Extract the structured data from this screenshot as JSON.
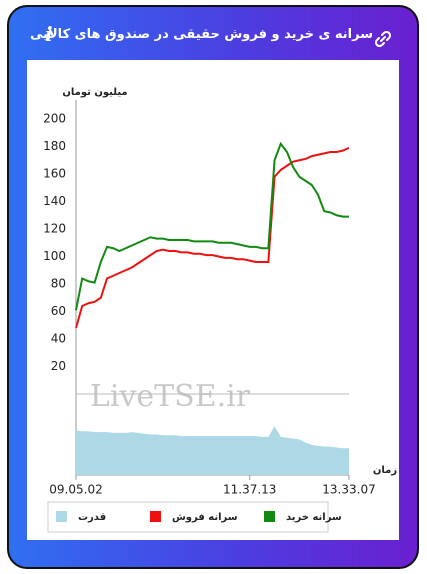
{
  "header": {
    "title": "سرانه ی خرید و فروش حقیقی در صندوق های کالایی",
    "info": "i"
  },
  "chart_data": {
    "type": "line",
    "y_label": "میلیون تومان",
    "x_label": "زمان",
    "watermark": "LiveTSE.ir",
    "categories": [
      "09.05.02",
      null,
      null,
      null,
      null,
      null,
      null,
      null,
      null,
      null,
      null,
      null,
      null,
      null,
      null,
      null,
      null,
      null,
      null,
      null,
      null,
      null,
      null,
      null,
      null,
      null,
      null,
      null,
      "11.37.13",
      null,
      null,
      null,
      null,
      null,
      null,
      null,
      null,
      null,
      null,
      null,
      null,
      null,
      null,
      null,
      "13.33.07"
    ],
    "ylim": [
      0,
      200
    ],
    "yticks": [
      20,
      40,
      60,
      80,
      100,
      120,
      140,
      160,
      180,
      200
    ],
    "y2lim": [
      0,
      100
    ],
    "series": [
      {
        "name": "سرانه خرید",
        "color": "#118a11",
        "values": [
          61,
          84,
          82,
          81,
          96,
          107,
          106,
          104,
          106,
          108,
          110,
          112,
          114,
          113,
          113,
          112,
          112,
          112,
          112,
          111,
          111,
          111,
          111,
          110,
          110,
          110,
          109,
          108,
          107,
          107,
          106,
          106,
          170,
          182,
          176,
          165,
          158,
          155,
          152,
          145,
          133,
          132,
          130,
          129,
          129
        ]
      },
      {
        "name": "سرانه فروش",
        "color": "#ee1111",
        "values": [
          48,
          64,
          66,
          67,
          70,
          84,
          86,
          88,
          90,
          92,
          95,
          98,
          101,
          104,
          105,
          104,
          104,
          103,
          103,
          102,
          102,
          101,
          101,
          100,
          99,
          99,
          98,
          98,
          97,
          96,
          96,
          96,
          158,
          163,
          166,
          169,
          170,
          171,
          173,
          174,
          175,
          176,
          176,
          177,
          179
        ]
      },
      {
        "name": "قدرت",
        "color": "#add8e6",
        "axis": "y2",
        "values": [
          55,
          54,
          54,
          53,
          53,
          53,
          52,
          52,
          52,
          53,
          52,
          51,
          50,
          50,
          49,
          49,
          49,
          48,
          48,
          48,
          48,
          48,
          48,
          48,
          48,
          48,
          48,
          48,
          48,
          48,
          47,
          47,
          60,
          47,
          46,
          45,
          44,
          40,
          37,
          36,
          35,
          35,
          34,
          33,
          33
        ]
      }
    ]
  }
}
